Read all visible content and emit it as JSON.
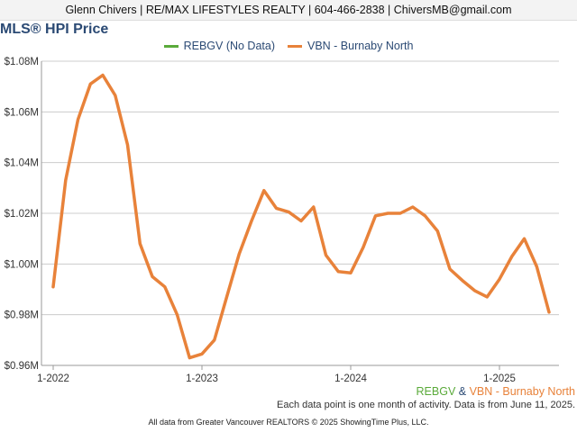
{
  "header": {
    "contact": "Glenn Chivers | RE/MAX LIFESTYLES REALTY | 604-466-2838 | ChiversMB@gmail.com"
  },
  "colors": {
    "rebgv": "#5aaa3a",
    "vbn": "#e8823a",
    "title": "#2b4a74",
    "grid": "#cccccc",
    "axis": "#333333"
  },
  "chart_data": {
    "type": "line",
    "title": "MLS® HPI Price",
    "xlabel": "",
    "ylabel": "",
    "legend_position": "top-center",
    "grid": true,
    "ylim": [
      960000,
      1080000
    ],
    "y_ticks": [
      960000,
      980000,
      1000000,
      1020000,
      1040000,
      1060000,
      1080000
    ],
    "y_tick_labels": [
      "$0.96M",
      "$0.98M",
      "$1.00M",
      "$1.02M",
      "$1.04M",
      "$1.06M",
      "$1.08M"
    ],
    "x_ticks": [
      "2022-01",
      "2023-01",
      "2024-01",
      "2025-01"
    ],
    "x_tick_labels": [
      "1-2022",
      "1-2023",
      "1-2024",
      "1-2025"
    ],
    "series": [
      {
        "name": "REBGV (No Data)",
        "color": "#5aaa3a",
        "x": [],
        "values": []
      },
      {
        "name": "VBN - Burnaby North",
        "color": "#e8823a",
        "x": [
          "2022-01",
          "2022-02",
          "2022-03",
          "2022-04",
          "2022-05",
          "2022-06",
          "2022-07",
          "2022-08",
          "2022-09",
          "2022-10",
          "2022-11",
          "2022-12",
          "2023-01",
          "2023-02",
          "2023-03",
          "2023-04",
          "2023-05",
          "2023-06",
          "2023-07",
          "2023-08",
          "2023-09",
          "2023-10",
          "2023-11",
          "2023-12",
          "2024-01",
          "2024-02",
          "2024-03",
          "2024-04",
          "2024-05",
          "2024-06",
          "2024-07",
          "2024-08",
          "2024-09",
          "2024-10",
          "2024-11",
          "2024-12",
          "2025-01",
          "2025-02",
          "2025-03",
          "2025-04",
          "2025-05"
        ],
        "values": [
          991000,
          1033000,
          1057000,
          1071000,
          1074500,
          1066500,
          1047000,
          1008000,
          995000,
          991000,
          980000,
          963000,
          964500,
          970000,
          987000,
          1004000,
          1017000,
          1029000,
          1022000,
          1020500,
          1017000,
          1022500,
          1003500,
          997000,
          996500,
          1006500,
          1019000,
          1020000,
          1020000,
          1022500,
          1019000,
          1013000,
          998000,
          993500,
          989500,
          987000,
          994000,
          1003000,
          1010000,
          999000,
          981000
        ]
      }
    ]
  },
  "captions": {
    "series_rebgv": "REBGV",
    "series_amp": " & ",
    "series_vbn": "VBN - Burnaby North",
    "note": "Each data point is one month of activity. Data is from June 11, 2025.",
    "footer": "All data from Greater Vancouver REALTORS © 2025 ShowingTime Plus, LLC."
  }
}
